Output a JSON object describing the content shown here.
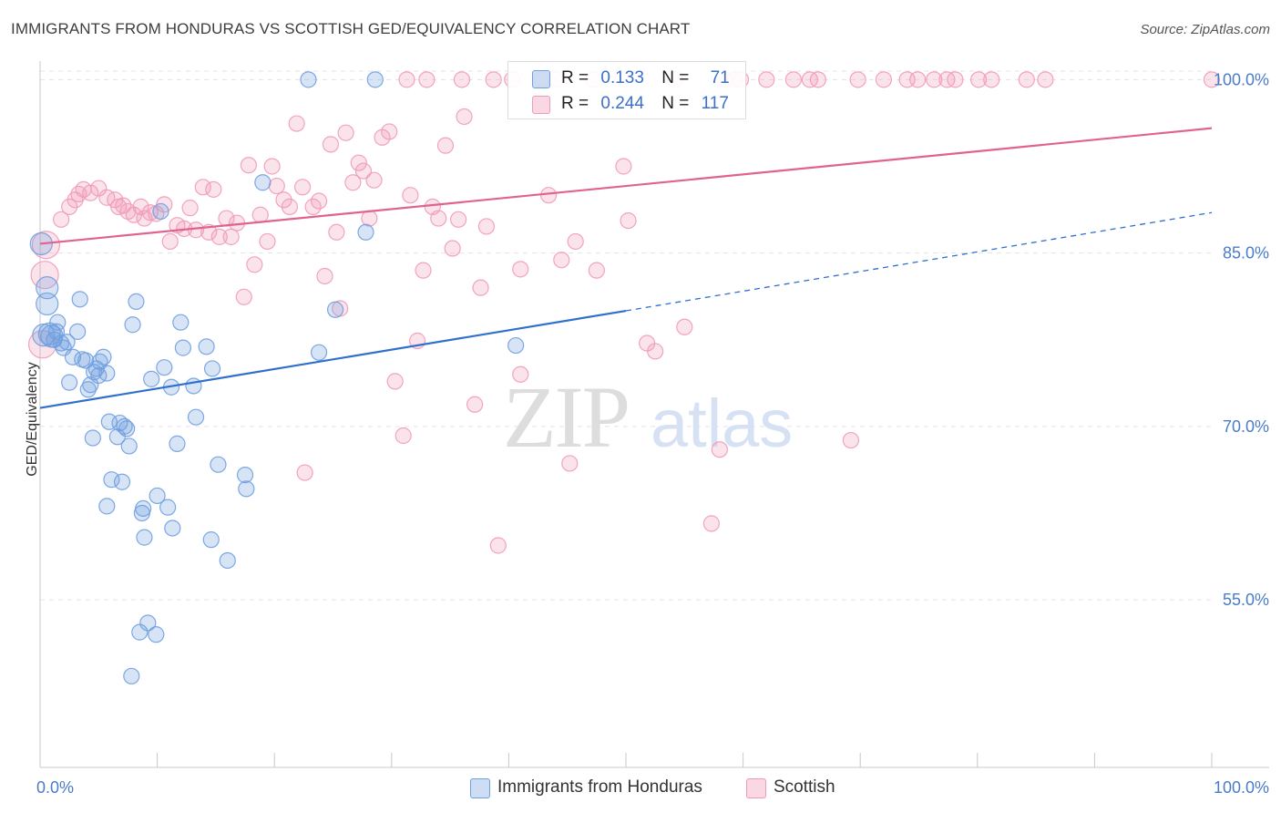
{
  "chart_data": {
    "type": "scatter",
    "title": "IMMIGRANTS FROM HONDURAS VS SCOTTISH GED/EQUIVALENCY CORRELATION CHART",
    "source": "Source: ZipAtlas.com",
    "xlabel": "",
    "ylabel": "GED/Equivalency",
    "xlim": [
      0,
      100
    ],
    "ylim": [
      40.5,
      102.0
    ],
    "x_tick_labels": [
      {
        "value": 0,
        "label": "0.0%"
      },
      {
        "value": 100,
        "label": "100.0%"
      }
    ],
    "y_tick_labels": [
      {
        "value": 100,
        "label": "100.0%"
      },
      {
        "value": 85,
        "label": "85.0%"
      },
      {
        "value": 70,
        "label": "70.0%"
      },
      {
        "value": 55,
        "label": "55.0%"
      }
    ],
    "watermark": {
      "part1": "ZIP",
      "part2": "atlas"
    },
    "legend": [
      {
        "series": "Immigrants from Honduras",
        "r_label": "R =",
        "r": "0.133",
        "n_label": "N =",
        "n": "71"
      },
      {
        "series": "Scottish",
        "r_label": "R =",
        "r": "0.244",
        "n_label": "N =",
        "n": "117"
      }
    ],
    "series": [
      {
        "name": "Immigrants from Honduras",
        "color": "#6f9fe0",
        "line_color": "#2f6fce",
        "trend": {
          "x0": 0,
          "y0": 71.6,
          "x1": 50,
          "y1": 80.0,
          "dash_to_x": 100,
          "dash_to_y": 88.5
        },
        "points": [
          [
            0.1,
            85.8
          ],
          [
            0.6,
            82.0
          ],
          [
            0.6,
            80.6
          ],
          [
            0.8,
            78.0
          ],
          [
            1.0,
            77.8
          ],
          [
            1.4,
            78.2
          ],
          [
            1.5,
            79.0
          ],
          [
            1.8,
            77.2
          ],
          [
            2.0,
            76.8
          ],
          [
            2.5,
            73.8
          ],
          [
            2.8,
            76.0
          ],
          [
            3.2,
            78.2
          ],
          [
            3.4,
            81.0
          ],
          [
            3.6,
            75.8
          ],
          [
            3.9,
            75.7
          ],
          [
            4.1,
            73.2
          ],
          [
            4.3,
            73.6
          ],
          [
            4.5,
            69.0
          ],
          [
            4.8,
            75.0
          ],
          [
            5.0,
            74.4
          ],
          [
            5.1,
            75.6
          ],
          [
            5.4,
            76.0
          ],
          [
            5.7,
            74.6
          ],
          [
            5.9,
            70.4
          ],
          [
            6.1,
            65.4
          ],
          [
            5.7,
            63.1
          ],
          [
            6.6,
            69.1
          ],
          [
            6.8,
            70.3
          ],
          [
            7.0,
            65.2
          ],
          [
            7.2,
            70.0
          ],
          [
            7.4,
            69.8
          ],
          [
            7.6,
            68.3
          ],
          [
            7.8,
            48.4
          ],
          [
            7.9,
            78.8
          ],
          [
            8.2,
            80.8
          ],
          [
            8.5,
            52.2
          ],
          [
            8.7,
            62.5
          ],
          [
            8.8,
            62.9
          ],
          [
            8.9,
            60.4
          ],
          [
            9.2,
            53.0
          ],
          [
            9.5,
            74.1
          ],
          [
            9.9,
            52.0
          ],
          [
            10.0,
            64.0
          ],
          [
            10.3,
            88.6
          ],
          [
            10.6,
            75.1
          ],
          [
            10.9,
            63.0
          ],
          [
            11.2,
            73.4
          ],
          [
            11.3,
            61.2
          ],
          [
            11.7,
            68.5
          ],
          [
            12.0,
            79.0
          ],
          [
            12.2,
            76.8
          ],
          [
            13.1,
            73.5
          ],
          [
            13.3,
            70.8
          ],
          [
            14.2,
            76.9
          ],
          [
            14.6,
            60.2
          ],
          [
            14.7,
            75.0
          ],
          [
            15.2,
            66.7
          ],
          [
            16.0,
            58.4
          ],
          [
            17.5,
            65.8
          ],
          [
            17.6,
            64.6
          ],
          [
            19.0,
            91.1
          ],
          [
            22.9,
            100.0
          ],
          [
            23.8,
            76.4
          ],
          [
            25.2,
            80.1
          ],
          [
            27.8,
            86.8
          ],
          [
            28.6,
            100.0
          ],
          [
            40.6,
            77.0
          ],
          [
            0.3,
            77.9
          ],
          [
            1.2,
            77.5
          ],
          [
            2.3,
            77.3
          ],
          [
            4.6,
            74.7
          ]
        ]
      },
      {
        "name": "Scottish",
        "color": "#f19ab8",
        "line_color": "#e0638f",
        "trend": {
          "x0": 0,
          "y0": 85.8,
          "x1": 100,
          "y1": 95.8
        },
        "points": [
          [
            0.2,
            77.1
          ],
          [
            0.4,
            83.1
          ],
          [
            0.5,
            85.7
          ],
          [
            1.8,
            87.9
          ],
          [
            2.5,
            89.0
          ],
          [
            3.0,
            89.6
          ],
          [
            3.3,
            90.1
          ],
          [
            3.7,
            90.5
          ],
          [
            4.3,
            90.2
          ],
          [
            5.0,
            90.6
          ],
          [
            5.7,
            89.8
          ],
          [
            6.4,
            89.6
          ],
          [
            6.7,
            89.0
          ],
          [
            7.1,
            89.1
          ],
          [
            7.5,
            88.6
          ],
          [
            8.0,
            88.3
          ],
          [
            8.6,
            89.0
          ],
          [
            8.9,
            88.0
          ],
          [
            9.4,
            88.5
          ],
          [
            9.9,
            88.4
          ],
          [
            10.6,
            89.2
          ],
          [
            11.1,
            86.0
          ],
          [
            11.7,
            87.4
          ],
          [
            12.3,
            87.1
          ],
          [
            12.8,
            88.9
          ],
          [
            13.3,
            87.0
          ],
          [
            13.9,
            90.7
          ],
          [
            14.4,
            86.8
          ],
          [
            14.8,
            90.5
          ],
          [
            15.3,
            86.4
          ],
          [
            15.9,
            88.0
          ],
          [
            16.3,
            86.4
          ],
          [
            16.8,
            87.6
          ],
          [
            17.4,
            81.2
          ],
          [
            17.8,
            92.6
          ],
          [
            18.3,
            84.0
          ],
          [
            18.8,
            88.3
          ],
          [
            19.4,
            86.0
          ],
          [
            19.8,
            92.5
          ],
          [
            20.2,
            90.8
          ],
          [
            20.8,
            89.6
          ],
          [
            21.3,
            89.0
          ],
          [
            21.9,
            96.2
          ],
          [
            22.4,
            90.7
          ],
          [
            22.6,
            66.0
          ],
          [
            23.3,
            89.0
          ],
          [
            23.8,
            89.5
          ],
          [
            24.3,
            83.0
          ],
          [
            24.8,
            94.4
          ],
          [
            25.3,
            86.8
          ],
          [
            25.6,
            80.2
          ],
          [
            26.1,
            95.4
          ],
          [
            26.7,
            91.1
          ],
          [
            27.2,
            92.8
          ],
          [
            27.6,
            92.1
          ],
          [
            28.1,
            88.0
          ],
          [
            28.5,
            91.3
          ],
          [
            29.2,
            95.0
          ],
          [
            29.8,
            95.5
          ],
          [
            30.3,
            73.9
          ],
          [
            31.0,
            69.2
          ],
          [
            31.6,
            90.0
          ],
          [
            32.2,
            77.4
          ],
          [
            32.7,
            83.5
          ],
          [
            33.5,
            89.0
          ],
          [
            34.0,
            88.0
          ],
          [
            34.6,
            94.3
          ],
          [
            35.2,
            85.4
          ],
          [
            35.7,
            87.9
          ],
          [
            36.2,
            96.8
          ],
          [
            37.1,
            71.9
          ],
          [
            37.6,
            82.0
          ],
          [
            38.1,
            87.3
          ],
          [
            38.7,
            100.0
          ],
          [
            39.1,
            59.7
          ],
          [
            40.3,
            100.0
          ],
          [
            41.0,
            74.5
          ],
          [
            41.0,
            83.6
          ],
          [
            42.8,
            100.0
          ],
          [
            43.4,
            90.0
          ],
          [
            44.0,
            100.0
          ],
          [
            44.5,
            84.4
          ],
          [
            45.2,
            66.8
          ],
          [
            45.7,
            86.0
          ],
          [
            47.2,
            100.0
          ],
          [
            47.5,
            83.5
          ],
          [
            49.8,
            92.5
          ],
          [
            50.2,
            87.8
          ],
          [
            51.8,
            77.2
          ],
          [
            52.5,
            76.5
          ],
          [
            54.2,
            100.0
          ],
          [
            55.0,
            78.6
          ],
          [
            57.3,
            61.6
          ],
          [
            58.0,
            68.0
          ],
          [
            59.3,
            100.0
          ],
          [
            59.8,
            100.0
          ],
          [
            62.0,
            100.0
          ],
          [
            64.3,
            100.0
          ],
          [
            66.4,
            100.0
          ],
          [
            69.2,
            68.8
          ],
          [
            69.8,
            100.0
          ],
          [
            72.0,
            100.0
          ],
          [
            74.0,
            100.0
          ],
          [
            74.9,
            100.0
          ],
          [
            76.3,
            100.0
          ],
          [
            77.4,
            100.0
          ],
          [
            78.1,
            100.0
          ],
          [
            80.1,
            100.0
          ],
          [
            81.2,
            100.0
          ],
          [
            84.2,
            100.0
          ],
          [
            85.8,
            100.0
          ],
          [
            100.0,
            100.0
          ],
          [
            31.3,
            100.0
          ],
          [
            33.0,
            100.0
          ],
          [
            36.0,
            100.0
          ],
          [
            58.5,
            100.0
          ],
          [
            65.7,
            100.0
          ]
        ]
      }
    ]
  }
}
